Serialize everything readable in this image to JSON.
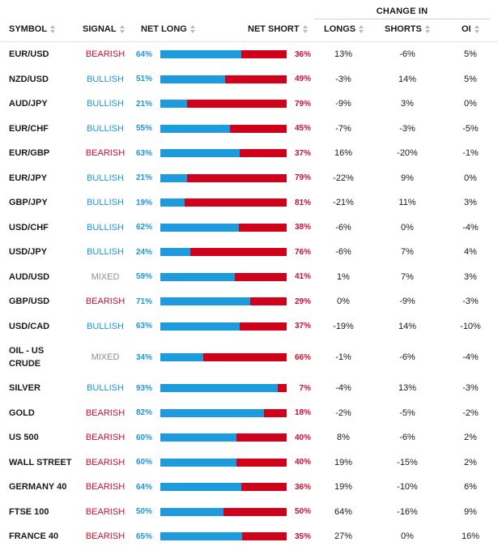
{
  "header": {
    "change_group": "CHANGE IN",
    "symbol": "SYMBOL",
    "signal": "SIGNAL",
    "net_long": "NET LONG",
    "net_short": "NET SHORT",
    "longs": "LONGS",
    "shorts": "SHORTS",
    "oi": "OI"
  },
  "colors": {
    "long_bar": "#1d9bdc",
    "short_bar": "#d0021b",
    "bullish": "#1e96d6",
    "bearish": "#c8102e",
    "mixed": "#8d8d8d"
  },
  "rows": [
    {
      "symbol": "EUR/USD",
      "signal": "BEARISH",
      "long_pct": "64%",
      "long": 64,
      "short_pct": "36%",
      "longs": "13%",
      "shorts": "-6%",
      "oi": "5%"
    },
    {
      "symbol": "NZD/USD",
      "signal": "BULLISH",
      "long_pct": "51%",
      "long": 51,
      "short_pct": "49%",
      "longs": "-3%",
      "shorts": "14%",
      "oi": "5%"
    },
    {
      "symbol": "AUD/JPY",
      "signal": "BULLISH",
      "long_pct": "21%",
      "long": 21,
      "short_pct": "79%",
      "longs": "-9%",
      "shorts": "3%",
      "oi": "0%"
    },
    {
      "symbol": "EUR/CHF",
      "signal": "BULLISH",
      "long_pct": "55%",
      "long": 55,
      "short_pct": "45%",
      "longs": "-7%",
      "shorts": "-3%",
      "oi": "-5%"
    },
    {
      "symbol": "EUR/GBP",
      "signal": "BEARISH",
      "long_pct": "63%",
      "long": 63,
      "short_pct": "37%",
      "longs": "16%",
      "shorts": "-20%",
      "oi": "-1%"
    },
    {
      "symbol": "EUR/JPY",
      "signal": "BULLISH",
      "long_pct": "21%",
      "long": 21,
      "short_pct": "79%",
      "longs": "-22%",
      "shorts": "9%",
      "oi": "0%"
    },
    {
      "symbol": "GBP/JPY",
      "signal": "BULLISH",
      "long_pct": "19%",
      "long": 19,
      "short_pct": "81%",
      "longs": "-21%",
      "shorts": "11%",
      "oi": "3%"
    },
    {
      "symbol": "USD/CHF",
      "signal": "BULLISH",
      "long_pct": "62%",
      "long": 62,
      "short_pct": "38%",
      "longs": "-6%",
      "shorts": "0%",
      "oi": "-4%"
    },
    {
      "symbol": "USD/JPY",
      "signal": "BULLISH",
      "long_pct": "24%",
      "long": 24,
      "short_pct": "76%",
      "longs": "-6%",
      "shorts": "7%",
      "oi": "4%"
    },
    {
      "symbol": "AUD/USD",
      "signal": "MIXED",
      "long_pct": "59%",
      "long": 59,
      "short_pct": "41%",
      "longs": "1%",
      "shorts": "7%",
      "oi": "3%"
    },
    {
      "symbol": "GBP/USD",
      "signal": "BEARISH",
      "long_pct": "71%",
      "long": 71,
      "short_pct": "29%",
      "longs": "0%",
      "shorts": "-9%",
      "oi": "-3%"
    },
    {
      "symbol": "USD/CAD",
      "signal": "BULLISH",
      "long_pct": "63%",
      "long": 63,
      "short_pct": "37%",
      "longs": "-19%",
      "shorts": "14%",
      "oi": "-10%"
    },
    {
      "symbol": "OIL - US CRUDE",
      "signal": "MIXED",
      "long_pct": "34%",
      "long": 34,
      "short_pct": "66%",
      "longs": "-1%",
      "shorts": "-6%",
      "oi": "-4%"
    },
    {
      "symbol": "SILVER",
      "signal": "BULLISH",
      "long_pct": "93%",
      "long": 93,
      "short_pct": "7%",
      "longs": "-4%",
      "shorts": "13%",
      "oi": "-3%"
    },
    {
      "symbol": "GOLD",
      "signal": "BEARISH",
      "long_pct": "82%",
      "long": 82,
      "short_pct": "18%",
      "longs": "-2%",
      "shorts": "-5%",
      "oi": "-2%"
    },
    {
      "symbol": "US 500",
      "signal": "BEARISH",
      "long_pct": "60%",
      "long": 60,
      "short_pct": "40%",
      "longs": "8%",
      "shorts": "-6%",
      "oi": "2%"
    },
    {
      "symbol": "WALL STREET",
      "signal": "BEARISH",
      "long_pct": "60%",
      "long": 60,
      "short_pct": "40%",
      "longs": "19%",
      "shorts": "-15%",
      "oi": "2%"
    },
    {
      "symbol": "GERMANY 40",
      "signal": "BEARISH",
      "long_pct": "64%",
      "long": 64,
      "short_pct": "36%",
      "longs": "19%",
      "shorts": "-10%",
      "oi": "6%"
    },
    {
      "symbol": "FTSE 100",
      "signal": "BEARISH",
      "long_pct": "50%",
      "long": 50,
      "short_pct": "50%",
      "longs": "64%",
      "shorts": "-16%",
      "oi": "9%"
    },
    {
      "symbol": "FRANCE 40",
      "signal": "BEARISH",
      "long_pct": "65%",
      "long": 65,
      "short_pct": "35%",
      "longs": "27%",
      "shorts": "0%",
      "oi": "16%"
    }
  ]
}
